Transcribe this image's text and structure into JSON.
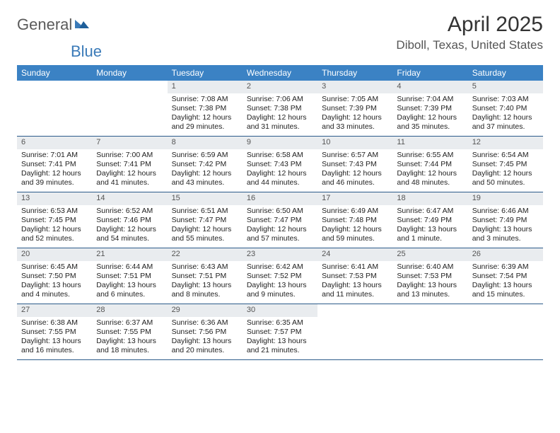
{
  "logo": {
    "text1": "General",
    "text2": "Blue"
  },
  "title": "April 2025",
  "location": "Diboll, Texas, United States",
  "colors": {
    "header_bg": "#3b82c4",
    "header_text": "#ffffff",
    "daynum_bg": "#e9ecef",
    "rule": "#2c5b8a",
    "logo_gray": "#5a5a5a",
    "logo_blue": "#3a7ab8"
  },
  "day_headers": [
    "Sunday",
    "Monday",
    "Tuesday",
    "Wednesday",
    "Thursday",
    "Friday",
    "Saturday"
  ],
  "weeks": [
    [
      {
        "empty": true
      },
      {
        "empty": true
      },
      {
        "day": "1",
        "sunrise": "Sunrise: 7:08 AM",
        "sunset": "Sunset: 7:38 PM",
        "dl1": "Daylight: 12 hours",
        "dl2": "and 29 minutes."
      },
      {
        "day": "2",
        "sunrise": "Sunrise: 7:06 AM",
        "sunset": "Sunset: 7:38 PM",
        "dl1": "Daylight: 12 hours",
        "dl2": "and 31 minutes."
      },
      {
        "day": "3",
        "sunrise": "Sunrise: 7:05 AM",
        "sunset": "Sunset: 7:39 PM",
        "dl1": "Daylight: 12 hours",
        "dl2": "and 33 minutes."
      },
      {
        "day": "4",
        "sunrise": "Sunrise: 7:04 AM",
        "sunset": "Sunset: 7:39 PM",
        "dl1": "Daylight: 12 hours",
        "dl2": "and 35 minutes."
      },
      {
        "day": "5",
        "sunrise": "Sunrise: 7:03 AM",
        "sunset": "Sunset: 7:40 PM",
        "dl1": "Daylight: 12 hours",
        "dl2": "and 37 minutes."
      }
    ],
    [
      {
        "day": "6",
        "sunrise": "Sunrise: 7:01 AM",
        "sunset": "Sunset: 7:41 PM",
        "dl1": "Daylight: 12 hours",
        "dl2": "and 39 minutes."
      },
      {
        "day": "7",
        "sunrise": "Sunrise: 7:00 AM",
        "sunset": "Sunset: 7:41 PM",
        "dl1": "Daylight: 12 hours",
        "dl2": "and 41 minutes."
      },
      {
        "day": "8",
        "sunrise": "Sunrise: 6:59 AM",
        "sunset": "Sunset: 7:42 PM",
        "dl1": "Daylight: 12 hours",
        "dl2": "and 43 minutes."
      },
      {
        "day": "9",
        "sunrise": "Sunrise: 6:58 AM",
        "sunset": "Sunset: 7:43 PM",
        "dl1": "Daylight: 12 hours",
        "dl2": "and 44 minutes."
      },
      {
        "day": "10",
        "sunrise": "Sunrise: 6:57 AM",
        "sunset": "Sunset: 7:43 PM",
        "dl1": "Daylight: 12 hours",
        "dl2": "and 46 minutes."
      },
      {
        "day": "11",
        "sunrise": "Sunrise: 6:55 AM",
        "sunset": "Sunset: 7:44 PM",
        "dl1": "Daylight: 12 hours",
        "dl2": "and 48 minutes."
      },
      {
        "day": "12",
        "sunrise": "Sunrise: 6:54 AM",
        "sunset": "Sunset: 7:45 PM",
        "dl1": "Daylight: 12 hours",
        "dl2": "and 50 minutes."
      }
    ],
    [
      {
        "day": "13",
        "sunrise": "Sunrise: 6:53 AM",
        "sunset": "Sunset: 7:45 PM",
        "dl1": "Daylight: 12 hours",
        "dl2": "and 52 minutes."
      },
      {
        "day": "14",
        "sunrise": "Sunrise: 6:52 AM",
        "sunset": "Sunset: 7:46 PM",
        "dl1": "Daylight: 12 hours",
        "dl2": "and 54 minutes."
      },
      {
        "day": "15",
        "sunrise": "Sunrise: 6:51 AM",
        "sunset": "Sunset: 7:47 PM",
        "dl1": "Daylight: 12 hours",
        "dl2": "and 55 minutes."
      },
      {
        "day": "16",
        "sunrise": "Sunrise: 6:50 AM",
        "sunset": "Sunset: 7:47 PM",
        "dl1": "Daylight: 12 hours",
        "dl2": "and 57 minutes."
      },
      {
        "day": "17",
        "sunrise": "Sunrise: 6:49 AM",
        "sunset": "Sunset: 7:48 PM",
        "dl1": "Daylight: 12 hours",
        "dl2": "and 59 minutes."
      },
      {
        "day": "18",
        "sunrise": "Sunrise: 6:47 AM",
        "sunset": "Sunset: 7:49 PM",
        "dl1": "Daylight: 13 hours",
        "dl2": "and 1 minute."
      },
      {
        "day": "19",
        "sunrise": "Sunrise: 6:46 AM",
        "sunset": "Sunset: 7:49 PM",
        "dl1": "Daylight: 13 hours",
        "dl2": "and 3 minutes."
      }
    ],
    [
      {
        "day": "20",
        "sunrise": "Sunrise: 6:45 AM",
        "sunset": "Sunset: 7:50 PM",
        "dl1": "Daylight: 13 hours",
        "dl2": "and 4 minutes."
      },
      {
        "day": "21",
        "sunrise": "Sunrise: 6:44 AM",
        "sunset": "Sunset: 7:51 PM",
        "dl1": "Daylight: 13 hours",
        "dl2": "and 6 minutes."
      },
      {
        "day": "22",
        "sunrise": "Sunrise: 6:43 AM",
        "sunset": "Sunset: 7:51 PM",
        "dl1": "Daylight: 13 hours",
        "dl2": "and 8 minutes."
      },
      {
        "day": "23",
        "sunrise": "Sunrise: 6:42 AM",
        "sunset": "Sunset: 7:52 PM",
        "dl1": "Daylight: 13 hours",
        "dl2": "and 9 minutes."
      },
      {
        "day": "24",
        "sunrise": "Sunrise: 6:41 AM",
        "sunset": "Sunset: 7:53 PM",
        "dl1": "Daylight: 13 hours",
        "dl2": "and 11 minutes."
      },
      {
        "day": "25",
        "sunrise": "Sunrise: 6:40 AM",
        "sunset": "Sunset: 7:53 PM",
        "dl1": "Daylight: 13 hours",
        "dl2": "and 13 minutes."
      },
      {
        "day": "26",
        "sunrise": "Sunrise: 6:39 AM",
        "sunset": "Sunset: 7:54 PM",
        "dl1": "Daylight: 13 hours",
        "dl2": "and 15 minutes."
      }
    ],
    [
      {
        "day": "27",
        "sunrise": "Sunrise: 6:38 AM",
        "sunset": "Sunset: 7:55 PM",
        "dl1": "Daylight: 13 hours",
        "dl2": "and 16 minutes."
      },
      {
        "day": "28",
        "sunrise": "Sunrise: 6:37 AM",
        "sunset": "Sunset: 7:55 PM",
        "dl1": "Daylight: 13 hours",
        "dl2": "and 18 minutes."
      },
      {
        "day": "29",
        "sunrise": "Sunrise: 6:36 AM",
        "sunset": "Sunset: 7:56 PM",
        "dl1": "Daylight: 13 hours",
        "dl2": "and 20 minutes."
      },
      {
        "day": "30",
        "sunrise": "Sunrise: 6:35 AM",
        "sunset": "Sunset: 7:57 PM",
        "dl1": "Daylight: 13 hours",
        "dl2": "and 21 minutes."
      },
      {
        "empty": true
      },
      {
        "empty": true
      },
      {
        "empty": true
      }
    ]
  ]
}
